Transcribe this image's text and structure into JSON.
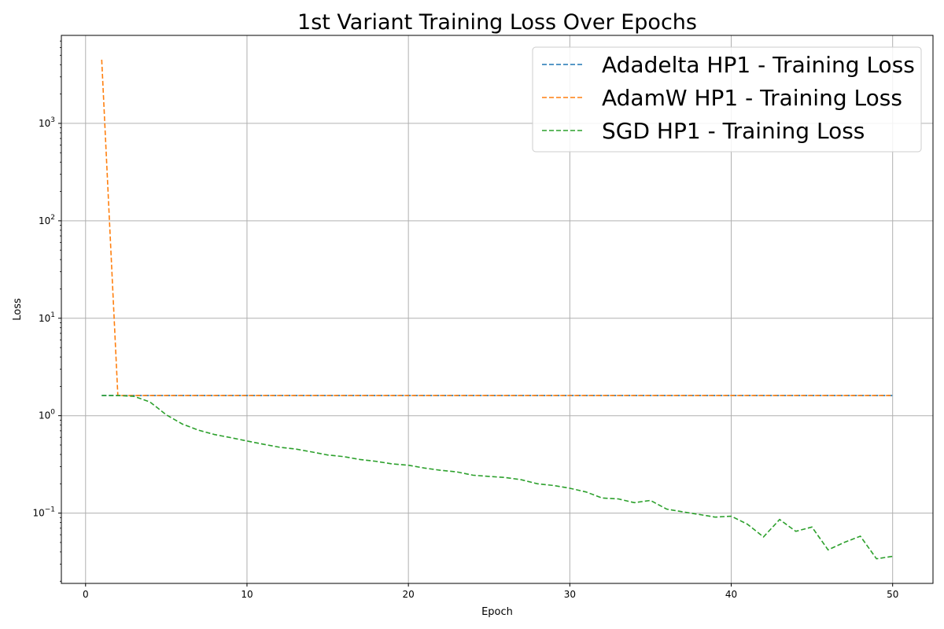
{
  "chart_data": {
    "type": "line",
    "title": "1st Variant Training Loss Over Epochs",
    "xlabel": "Epoch",
    "ylabel": "Loss",
    "xlim": [
      -1.5,
      52.5
    ],
    "ylim": [
      0.019,
      8000
    ],
    "yscale": "log",
    "grid": true,
    "legend_position": "top-right",
    "x_ticks": [
      0,
      10,
      20,
      30,
      40,
      50
    ],
    "x_tick_labels": [
      "0",
      "10",
      "20",
      "30",
      "40",
      "50"
    ],
    "y_ticks": [
      0.1,
      1,
      10,
      100,
      1000
    ],
    "y_tick_labels": [
      {
        "base": "10",
        "exp": "−1"
      },
      {
        "base": "10",
        "exp": "0"
      },
      {
        "base": "10",
        "exp": "1"
      },
      {
        "base": "10",
        "exp": "2"
      },
      {
        "base": "10",
        "exp": "3"
      }
    ],
    "series": [
      {
        "name": "Adadelta HP1 - Training Loss",
        "color": "#1f77b4",
        "line_style": "dashed",
        "x": [
          1,
          50
        ],
        "values": [
          1.61,
          1.61
        ]
      },
      {
        "name": "AdamW HP1 - Training Loss",
        "color": "#ff7f0e",
        "line_style": "dashed",
        "x": [
          1,
          2,
          3,
          50
        ],
        "values": [
          4500,
          1.61,
          1.61,
          1.61
        ]
      },
      {
        "name": "SGD HP1 - Training Loss",
        "color": "#2ca02c",
        "line_style": "dashed",
        "x": [
          1,
          2,
          3,
          4,
          5,
          6,
          7,
          8,
          9,
          10,
          11,
          12,
          13,
          14,
          15,
          16,
          17,
          18,
          19,
          20,
          21,
          22,
          23,
          24,
          25,
          26,
          27,
          28,
          29,
          30,
          31,
          32,
          33,
          34,
          35,
          36,
          37,
          38,
          39,
          40,
          41,
          42,
          43,
          44,
          45,
          46,
          47,
          48,
          49,
          50
        ],
        "values": [
          1.61,
          1.61,
          1.58,
          1.38,
          1.02,
          0.82,
          0.71,
          0.64,
          0.595,
          0.55,
          0.51,
          0.475,
          0.455,
          0.425,
          0.395,
          0.38,
          0.355,
          0.34,
          0.32,
          0.31,
          0.29,
          0.275,
          0.265,
          0.245,
          0.238,
          0.232,
          0.22,
          0.2,
          0.192,
          0.18,
          0.165,
          0.143,
          0.14,
          0.128,
          0.135,
          0.11,
          0.103,
          0.097,
          0.091,
          0.093,
          0.077,
          0.057,
          0.086,
          0.065,
          0.072,
          0.042,
          0.05,
          0.058,
          0.034,
          0.036
        ]
      }
    ]
  }
}
